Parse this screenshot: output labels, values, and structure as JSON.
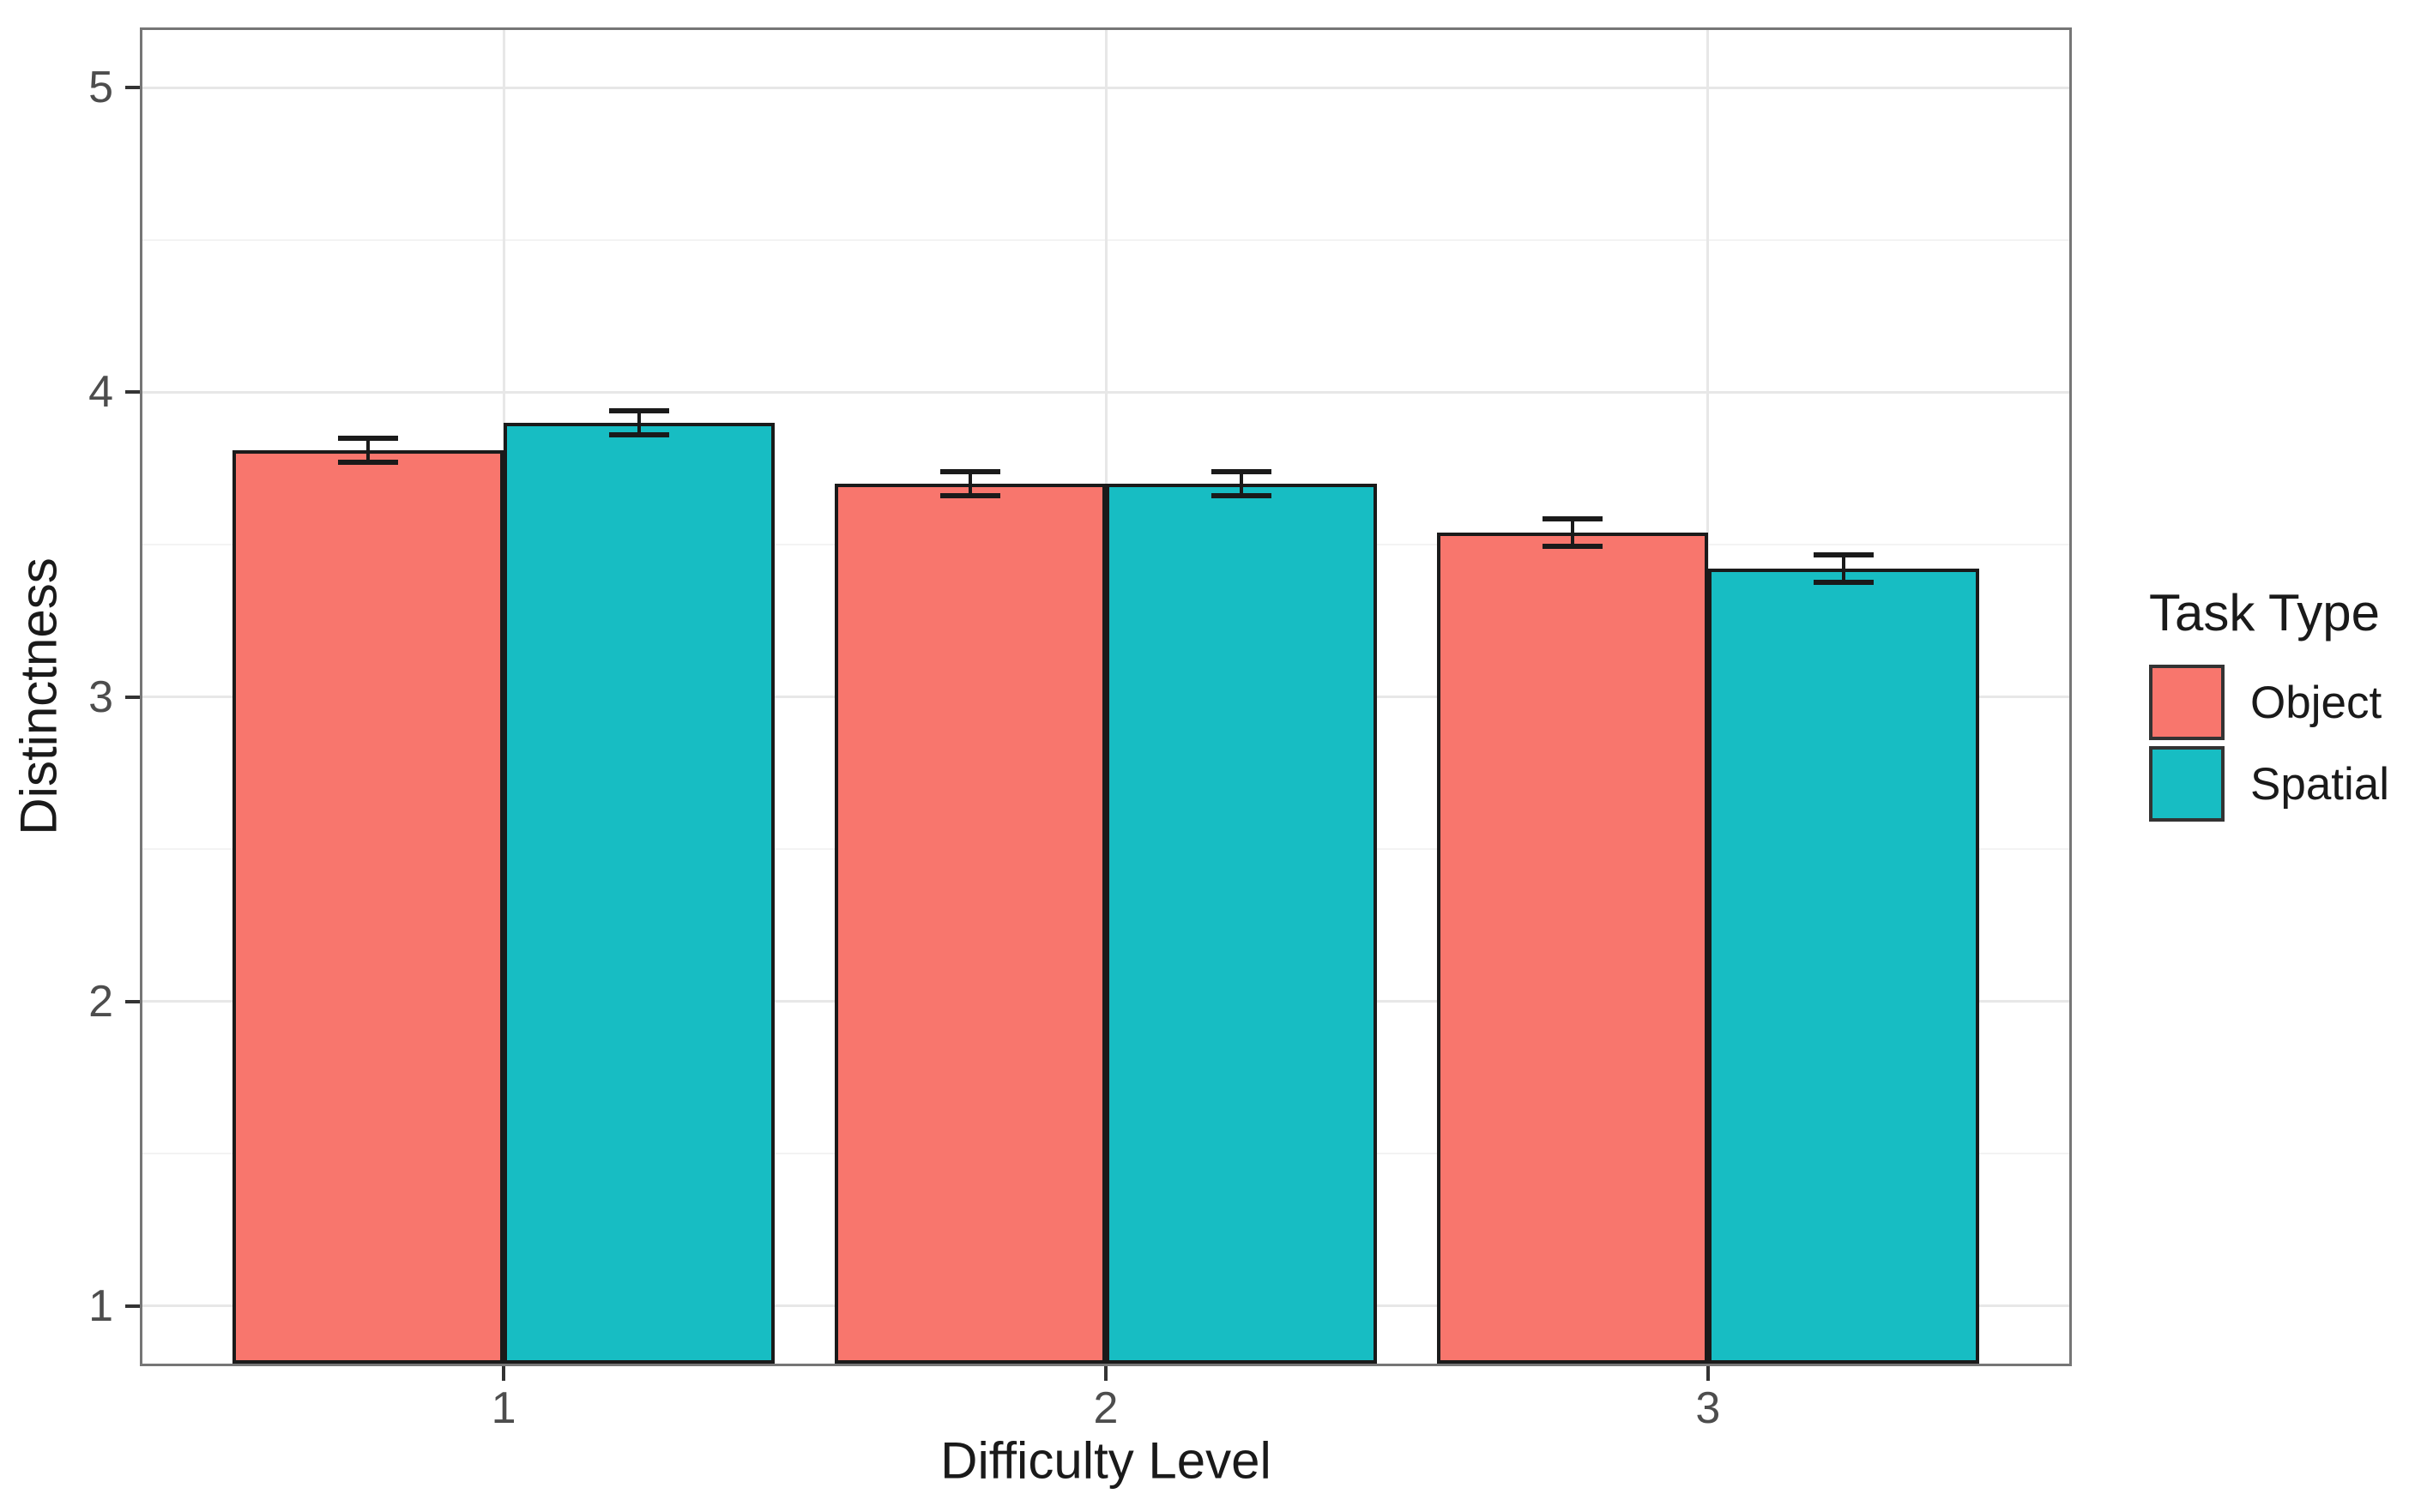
{
  "chart_data": {
    "type": "bar",
    "title": "",
    "xlabel": "Difficulty Level",
    "ylabel": "Distinctness",
    "categories": [
      "1",
      "2",
      "3"
    ],
    "series": [
      {
        "name": "Object",
        "color": "#F8766D",
        "values": [
          3.81,
          3.7,
          3.54
        ],
        "errors": [
          0.04,
          0.04,
          0.045
        ]
      },
      {
        "name": "Spatial",
        "color": "#17BDC3",
        "values": [
          3.9,
          3.7,
          3.42
        ],
        "errors": [
          0.04,
          0.04,
          0.045
        ]
      }
    ],
    "ylim": [
      0.81,
      5.19
    ],
    "xlim": [
      0.4,
      3.6
    ],
    "y_major_ticks": [
      1,
      2,
      3,
      4,
      5
    ],
    "y_minor_ticks": [
      1.5,
      2.5,
      3.5,
      4.5
    ],
    "bar_width": 0.45,
    "dodge_offset": 0.225,
    "error_cap_width": 0.1,
    "grid": "horizontal major+minor, vertical major at categories",
    "legend": {
      "title": "Task Type",
      "position": "right",
      "entries": [
        "Object",
        "Spatial"
      ]
    },
    "colors": {
      "bar_border": "#1A1A1A",
      "error_bar": "#1A1A1A",
      "grid_major": "#E7E7E7",
      "grid_minor": "#F3F3F3",
      "panel_border": "#767676",
      "panel_background": "#FFFFFF",
      "tick_mark": "#333333",
      "tick_label": "#4D4D4D",
      "axis_title": "#1A1A1A"
    }
  }
}
